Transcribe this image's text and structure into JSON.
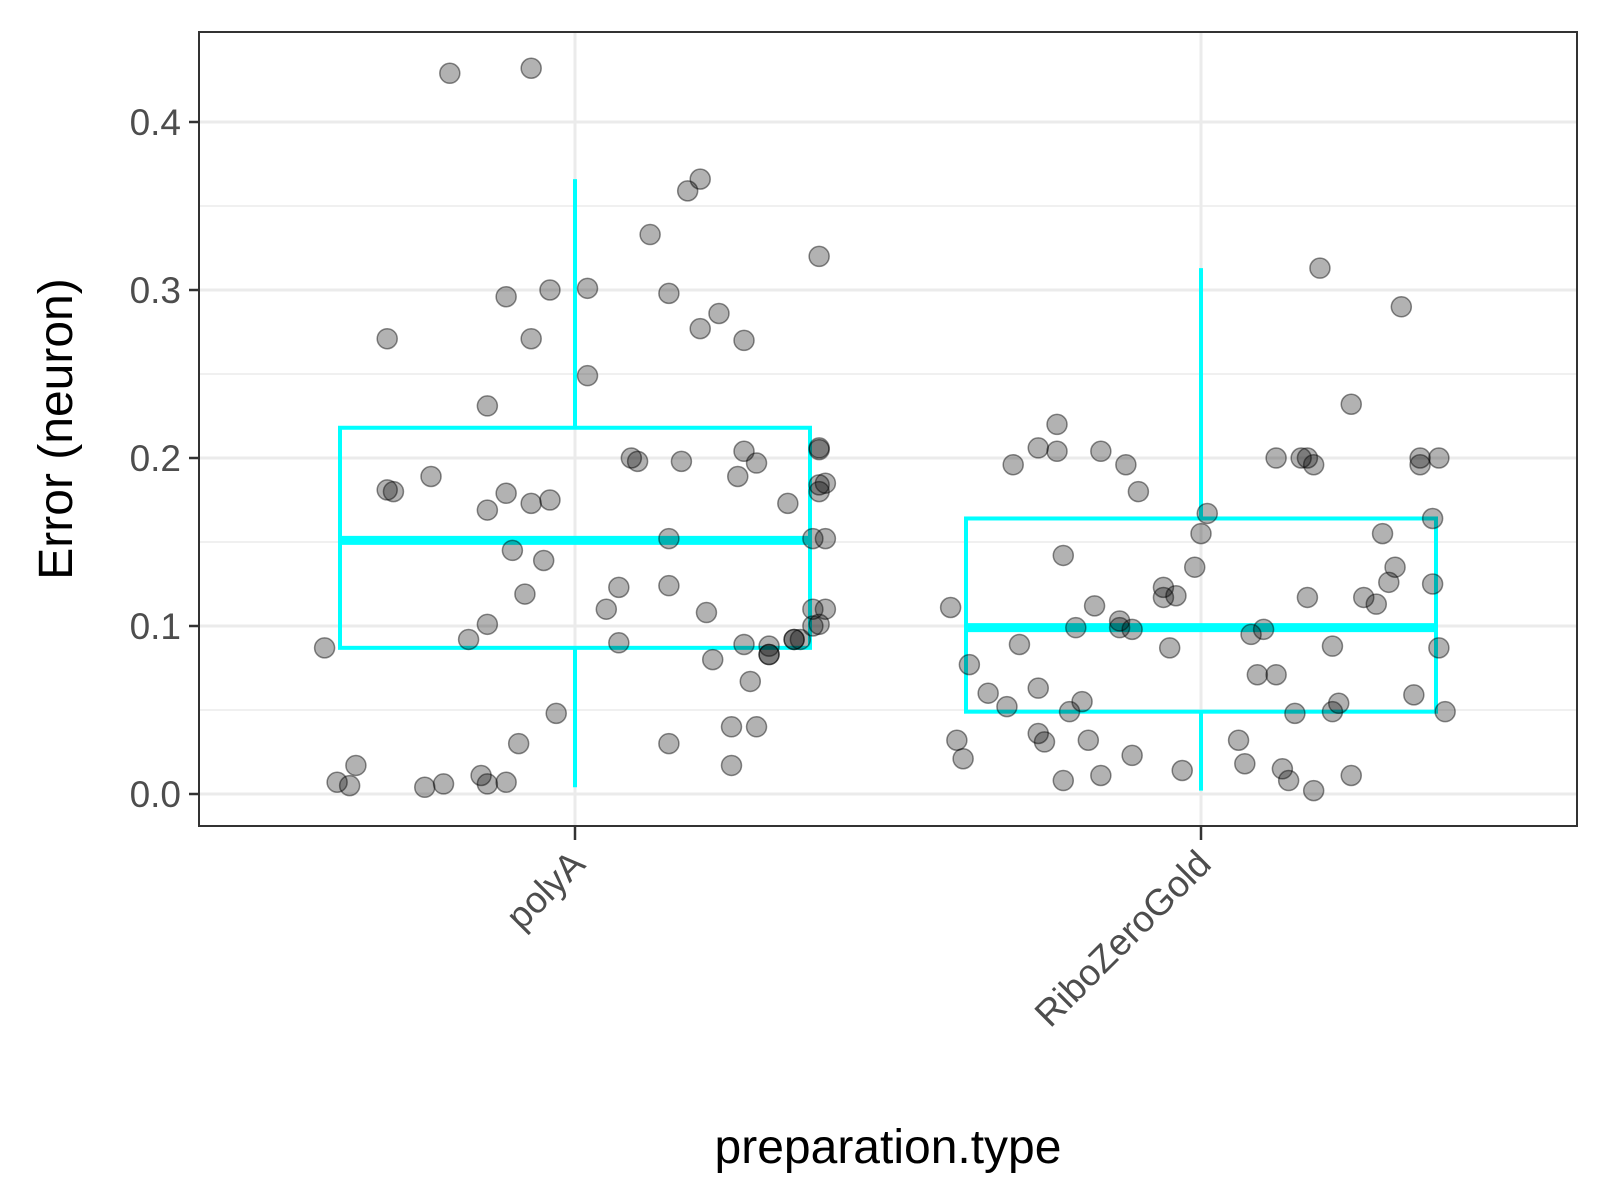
{
  "chart_data": {
    "type": "boxplot",
    "xlabel": "preparation.type",
    "ylabel": "Error (neuron)",
    "categories": [
      "polyA",
      "RiboZeroGold"
    ],
    "ylim": [
      -0.02,
      0.45
    ],
    "yticks": [
      "0.0",
      "0.1",
      "0.2",
      "0.3",
      "0.4"
    ],
    "grid": true,
    "colors": {
      "box": "#00ffff",
      "points": "#000000",
      "grid": "#ebebeb",
      "panel_border": "#333333"
    },
    "boxes": [
      {
        "category": "polyA",
        "whisker_low": 0.004,
        "q1": 0.087,
        "median": 0.151,
        "q3": 0.218,
        "whisker_high": 0.366
      },
      {
        "category": "RiboZeroGold",
        "whisker_low": 0.002,
        "q1": 0.049,
        "median": 0.099,
        "q3": 0.164,
        "whisker_high": 0.313
      }
    ],
    "points": [
      {
        "category": "polyA",
        "jitter": [
          -0.4,
          -0.38,
          -0.36,
          -0.35,
          -0.3,
          -0.3,
          -0.29,
          -0.24,
          -0.21,
          -0.23,
          -0.2,
          -0.17,
          -0.15,
          -0.14,
          -0.14,
          -0.14,
          -0.14,
          -0.11,
          -0.11,
          -0.11,
          -0.1,
          -0.09,
          -0.08,
          -0.07,
          -0.07,
          -0.07,
          -0.05,
          -0.04,
          -0.04,
          -0.03,
          0.02,
          0.02,
          0.07,
          0.07,
          0.09,
          0.1,
          0.12,
          0.15,
          0.15,
          0.15,
          0.18,
          0.2,
          0.2,
          0.21,
          0.22,
          0.23,
          0.25,
          0.26,
          0.27,
          0.27,
          0.27,
          0.28,
          0.29,
          0.29,
          0.31,
          0.31,
          0.34,
          0.35,
          0.35,
          0.36,
          0.38,
          0.39,
          0.39,
          0.39,
          0.38,
          0.39,
          0.39,
          0.4,
          0.4,
          0.4,
          0.39,
          0.38,
          0.31,
          0.05,
          0.15,
          0.17,
          0.25
        ],
        "values": [
          0.087,
          0.007,
          0.005,
          0.017,
          0.181,
          0.271,
          0.18,
          0.004,
          0.006,
          0.189,
          0.429,
          0.092,
          0.011,
          0.169,
          0.006,
          0.101,
          0.231,
          0.007,
          0.179,
          0.296,
          0.145,
          0.03,
          0.119,
          0.432,
          0.271,
          0.173,
          0.139,
          0.175,
          0.3,
          0.048,
          0.301,
          0.249,
          0.123,
          0.09,
          0.2,
          0.198,
          0.333,
          0.124,
          0.298,
          0.03,
          0.359,
          0.366,
          0.277,
          0.108,
          0.08,
          0.286,
          0.017,
          0.189,
          0.27,
          0.204,
          0.089,
          0.067,
          0.04,
          0.197,
          0.083,
          0.088,
          0.173,
          0.092,
          0.092,
          0.092,
          0.152,
          0.184,
          0.101,
          0.206,
          0.11,
          0.18,
          0.32,
          0.185,
          0.152,
          0.11,
          0.205,
          0.1,
          0.083,
          0.11,
          0.152,
          0.198,
          0.04
        ]
      },
      {
        "category": "RiboZeroGold",
        "jitter": [
          -0.4,
          -0.39,
          -0.38,
          -0.37,
          -0.34,
          -0.31,
          -0.3,
          -0.29,
          -0.26,
          -0.26,
          -0.26,
          -0.25,
          -0.23,
          -0.23,
          -0.22,
          -0.22,
          -0.21,
          -0.2,
          -0.19,
          -0.18,
          -0.17,
          -0.16,
          -0.16,
          -0.13,
          -0.13,
          -0.12,
          -0.11,
          -0.11,
          -0.1,
          -0.06,
          -0.06,
          -0.05,
          -0.04,
          -0.03,
          -0.01,
          0.0,
          0.01,
          0.06,
          0.07,
          0.08,
          0.09,
          0.1,
          0.12,
          0.12,
          0.13,
          0.14,
          0.15,
          0.16,
          0.17,
          0.17,
          0.18,
          0.18,
          0.19,
          0.21,
          0.21,
          0.22,
          0.24,
          0.24,
          0.26,
          0.28,
          0.29,
          0.3,
          0.31,
          0.32,
          0.34,
          0.35,
          0.35,
          0.37,
          0.37,
          0.38,
          0.38,
          0.39
        ],
        "values": [
          0.111,
          0.032,
          0.021,
          0.077,
          0.06,
          0.052,
          0.196,
          0.089,
          0.206,
          0.063,
          0.036,
          0.031,
          0.22,
          0.204,
          0.142,
          0.008,
          0.049,
          0.099,
          0.055,
          0.032,
          0.112,
          0.011,
          0.204,
          0.099,
          0.103,
          0.196,
          0.023,
          0.098,
          0.18,
          0.117,
          0.123,
          0.087,
          0.118,
          0.014,
          0.135,
          0.155,
          0.167,
          0.032,
          0.018,
          0.095,
          0.071,
          0.098,
          0.071,
          0.2,
          0.015,
          0.008,
          0.048,
          0.2,
          0.117,
          0.2,
          0.196,
          0.002,
          0.313,
          0.088,
          0.049,
          0.054,
          0.232,
          0.011,
          0.117,
          0.113,
          0.155,
          0.126,
          0.135,
          0.29,
          0.059,
          0.196,
          0.2,
          0.164,
          0.125,
          0.087,
          0.2,
          0.049
        ]
      }
    ]
  }
}
